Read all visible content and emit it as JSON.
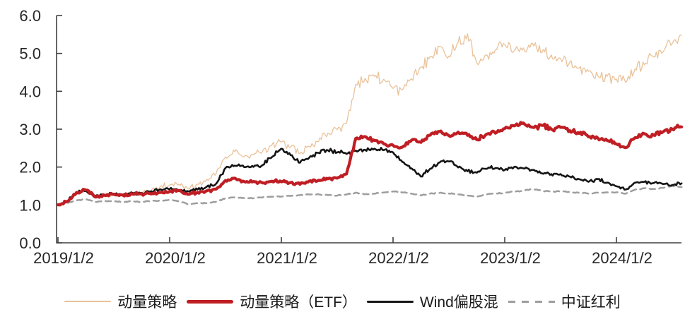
{
  "chart_data": {
    "type": "line",
    "title": "",
    "xlabel": "",
    "ylabel": "",
    "grid": false,
    "legend_position": "bottom",
    "ylim": [
      0,
      6
    ],
    "y_tick_values": [
      0,
      1,
      2,
      3,
      4,
      5,
      6
    ],
    "y_tick_labels": [
      "0.0",
      "1.0",
      "2.0",
      "3.0",
      "4.0",
      "5.0",
      "6.0"
    ],
    "x_tick_labels": [
      "2019/1/2",
      "2020/1/2",
      "2021/1/2",
      "2022/1/2",
      "2023/1/2",
      "2024/1/2"
    ],
    "x_range_note": "monthly samples from 2019/1 to 2024/8",
    "axis_color": "#404040",
    "label_color": "#262626",
    "series": [
      {
        "key": "momentum",
        "name": "动量策略",
        "color": "#e9c29a",
        "line_width": 1.3,
        "dash": null,
        "monthly_values_2019_01_to_2024_08": [
          1.0,
          1.08,
          1.28,
          1.4,
          1.2,
          1.24,
          1.28,
          1.25,
          1.32,
          1.33,
          1.38,
          1.48,
          1.52,
          1.56,
          1.42,
          1.55,
          1.65,
          1.82,
          2.25,
          2.42,
          2.28,
          2.32,
          2.42,
          2.58,
          2.68,
          2.55,
          2.38,
          2.52,
          2.7,
          2.88,
          2.98,
          3.15,
          4.2,
          4.32,
          4.4,
          4.3,
          4.1,
          4.02,
          4.3,
          4.62,
          4.95,
          5.18,
          4.92,
          5.32,
          5.5,
          4.75,
          4.95,
          5.1,
          5.22,
          5.05,
          5.15,
          5.28,
          5.05,
          4.95,
          4.85,
          4.78,
          4.62,
          4.52,
          4.42,
          4.38,
          4.3,
          4.26,
          4.6,
          4.72,
          4.9,
          5.06,
          5.28,
          5.48
        ]
      },
      {
        "key": "momentum-etf",
        "name": "动量策略（ETF）",
        "color": "#bf1e24",
        "line_width": 4.2,
        "dash": null,
        "monthly_values_2019_01_to_2024_08": [
          1.0,
          1.1,
          1.32,
          1.4,
          1.22,
          1.25,
          1.28,
          1.25,
          1.3,
          1.28,
          1.3,
          1.32,
          1.35,
          1.38,
          1.28,
          1.32,
          1.36,
          1.42,
          1.65,
          1.7,
          1.62,
          1.62,
          1.58,
          1.62,
          1.62,
          1.58,
          1.55,
          1.62,
          1.65,
          1.7,
          1.72,
          1.82,
          2.75,
          2.8,
          2.7,
          2.62,
          2.58,
          2.52,
          2.7,
          2.65,
          2.85,
          2.95,
          2.82,
          2.92,
          2.85,
          2.72,
          2.85,
          2.9,
          3.02,
          3.1,
          3.15,
          3.05,
          3.1,
          3.0,
          3.05,
          2.95,
          2.9,
          2.8,
          2.75,
          2.7,
          2.62,
          2.5,
          2.78,
          2.88,
          2.84,
          2.92,
          3.0,
          3.06
        ]
      },
      {
        "key": "wind-equity-mix",
        "name": "Wind偏股混",
        "color": "#141414",
        "line_width": 2.6,
        "dash": null,
        "monthly_values_2019_01_to_2024_08": [
          1.0,
          1.1,
          1.32,
          1.38,
          1.22,
          1.26,
          1.3,
          1.28,
          1.32,
          1.3,
          1.35,
          1.4,
          1.42,
          1.4,
          1.35,
          1.42,
          1.48,
          1.55,
          1.98,
          2.05,
          2.0,
          2.02,
          2.05,
          2.28,
          2.48,
          2.32,
          2.12,
          2.25,
          2.38,
          2.45,
          2.4,
          2.35,
          2.42,
          2.45,
          2.48,
          2.45,
          2.38,
          2.15,
          1.95,
          1.75,
          1.95,
          2.12,
          2.15,
          2.0,
          1.9,
          1.85,
          1.95,
          1.98,
          1.92,
          2.0,
          1.98,
          1.92,
          1.82,
          1.8,
          1.82,
          1.75,
          1.68,
          1.62,
          1.68,
          1.6,
          1.48,
          1.4,
          1.58,
          1.62,
          1.58,
          1.56,
          1.52,
          1.57
        ]
      },
      {
        "key": "csi-dividend",
        "name": "中证红利",
        "color": "#9e9e9e",
        "line_width": 2.5,
        "dash": "8 6",
        "monthly_values_2019_01_to_2024_08": [
          1.0,
          1.05,
          1.12,
          1.15,
          1.08,
          1.1,
          1.1,
          1.08,
          1.1,
          1.08,
          1.1,
          1.12,
          1.13,
          1.1,
          1.02,
          1.05,
          1.05,
          1.08,
          1.18,
          1.2,
          1.18,
          1.18,
          1.2,
          1.22,
          1.22,
          1.24,
          1.26,
          1.28,
          1.28,
          1.26,
          1.25,
          1.28,
          1.32,
          1.28,
          1.3,
          1.33,
          1.36,
          1.33,
          1.3,
          1.25,
          1.3,
          1.32,
          1.3,
          1.28,
          1.25,
          1.22,
          1.28,
          1.3,
          1.32,
          1.35,
          1.38,
          1.42,
          1.38,
          1.35,
          1.36,
          1.34,
          1.32,
          1.3,
          1.32,
          1.33,
          1.33,
          1.3,
          1.4,
          1.44,
          1.42,
          1.45,
          1.5,
          1.47
        ]
      }
    ]
  }
}
